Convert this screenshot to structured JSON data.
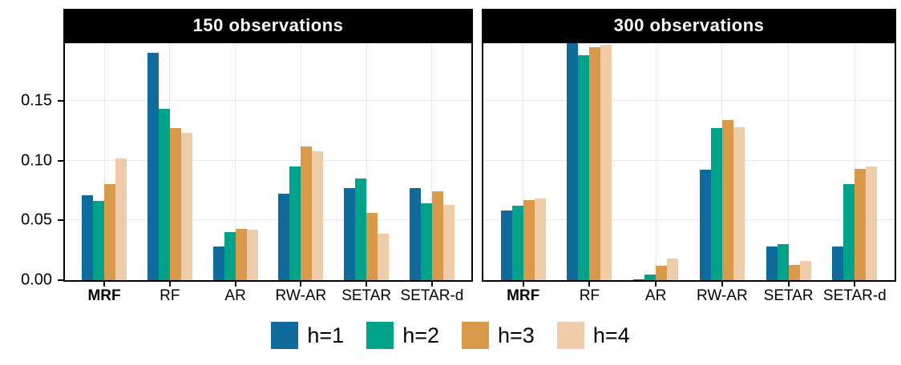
{
  "chart_data": {
    "type": "bar",
    "grouped": true,
    "categories": [
      "MRF",
      "RF",
      "AR",
      "RW-AR",
      "SETAR",
      "SETAR-d"
    ],
    "bold_categories": [
      "MRF"
    ],
    "yticks": [
      "0.00",
      "0.05",
      "0.10",
      "0.15"
    ],
    "ylim": [
      0,
      0.198
    ],
    "grid": "major-only",
    "legend_position": "bottom",
    "series_meta": [
      {
        "name": "h=1",
        "color": "#0F6B9C"
      },
      {
        "name": "h=2",
        "color": "#00A28A"
      },
      {
        "name": "h=3",
        "color": "#D9994A"
      },
      {
        "name": "h=4",
        "color": "#EECBA9"
      }
    ],
    "facets": [
      {
        "title": "150 observations",
        "series": [
          {
            "name": "h=1",
            "values": [
              0.071,
              0.19,
              0.028,
              0.072,
              0.077,
              0.077
            ]
          },
          {
            "name": "h=2",
            "values": [
              0.066,
              0.143,
              0.04,
              0.095,
              0.085,
              0.064
            ]
          },
          {
            "name": "h=3",
            "values": [
              0.08,
              0.127,
              0.043,
              0.112,
              0.056,
              0.074
            ]
          },
          {
            "name": "h=4",
            "values": [
              0.102,
              0.123,
              0.042,
              0.108,
              0.039,
              0.063
            ]
          }
        ]
      },
      {
        "title": "300 observations",
        "series": [
          {
            "name": "h=1",
            "values": [
              0.058,
              0.198,
              0.001,
              0.092,
              0.028,
              0.028
            ]
          },
          {
            "name": "h=2",
            "values": [
              0.062,
              0.188,
              0.005,
              0.127,
              0.03,
              0.08
            ]
          },
          {
            "name": "h=3",
            "values": [
              0.067,
              0.195,
              0.012,
              0.134,
              0.013,
              0.093
            ]
          },
          {
            "name": "h=4",
            "values": [
              0.068,
              0.197,
              0.018,
              0.128,
              0.016,
              0.095
            ]
          }
        ]
      }
    ],
    "style": {
      "strip_bg": "#000000",
      "strip_text": "#FFFFFF",
      "gridline": "#E8E8E8",
      "panel_border": "#000000",
      "background": "#FFFFFF"
    }
  }
}
